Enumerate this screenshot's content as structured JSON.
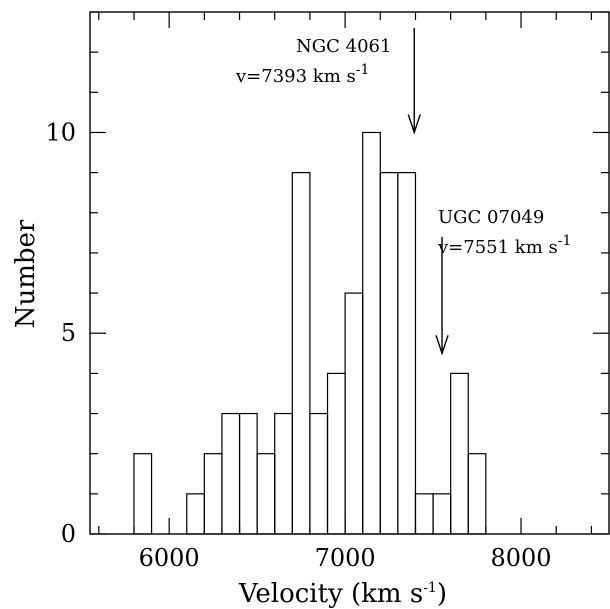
{
  "chart_data": {
    "type": "bar",
    "subtype": "histogram",
    "xlabel": "Velocity (km s",
    "xlabel_sup": "-1",
    "xlabel_close": ")",
    "ylabel": "Number",
    "xlim": [
      5550,
      8500
    ],
    "ylim": [
      0,
      13
    ],
    "bin_width": 100,
    "x_ticks": [
      6000,
      7000,
      8000
    ],
    "x_tick_labels": [
      "6000",
      "7000",
      "8000"
    ],
    "y_ticks": [
      0,
      5,
      10
    ],
    "y_tick_labels": [
      "0",
      "5",
      "10"
    ],
    "bins": [
      {
        "x0": 5800,
        "x1": 5900,
        "count": 2
      },
      {
        "x0": 6100,
        "x1": 6200,
        "count": 1
      },
      {
        "x0": 6200,
        "x1": 6300,
        "count": 2
      },
      {
        "x0": 6300,
        "x1": 6400,
        "count": 3
      },
      {
        "x0": 6400,
        "x1": 6500,
        "count": 3
      },
      {
        "x0": 6500,
        "x1": 6600,
        "count": 2
      },
      {
        "x0": 6600,
        "x1": 6700,
        "count": 3
      },
      {
        "x0": 6700,
        "x1": 6800,
        "count": 9
      },
      {
        "x0": 6800,
        "x1": 6900,
        "count": 3
      },
      {
        "x0": 6900,
        "x1": 7000,
        "count": 4
      },
      {
        "x0": 7000,
        "x1": 7100,
        "count": 6
      },
      {
        "x0": 7100,
        "x1": 7200,
        "count": 10
      },
      {
        "x0": 7200,
        "x1": 7300,
        "count": 9
      },
      {
        "x0": 7300,
        "x1": 7400,
        "count": 9
      },
      {
        "x0": 7400,
        "x1": 7500,
        "count": 1
      },
      {
        "x0": 7500,
        "x1": 7600,
        "count": 1
      },
      {
        "x0": 7600,
        "x1": 7700,
        "count": 4
      },
      {
        "x0": 7700,
        "x1": 7800,
        "count": 2
      }
    ],
    "annotations": [
      {
        "name": "NGC 4061",
        "label": "NGC 4061",
        "vlabel": "v=7393 km s",
        "vsup": "-1",
        "velocity": 7393,
        "arrow_top": 12.6,
        "arrow_bottom": 10.0
      },
      {
        "name": "UGC 07049",
        "label": "UGC 07049",
        "vlabel": "v=7551 km s",
        "vsup": "-1",
        "velocity": 7551,
        "arrow_top": 7.4,
        "arrow_bottom": 4.5
      }
    ],
    "grid": false
  }
}
